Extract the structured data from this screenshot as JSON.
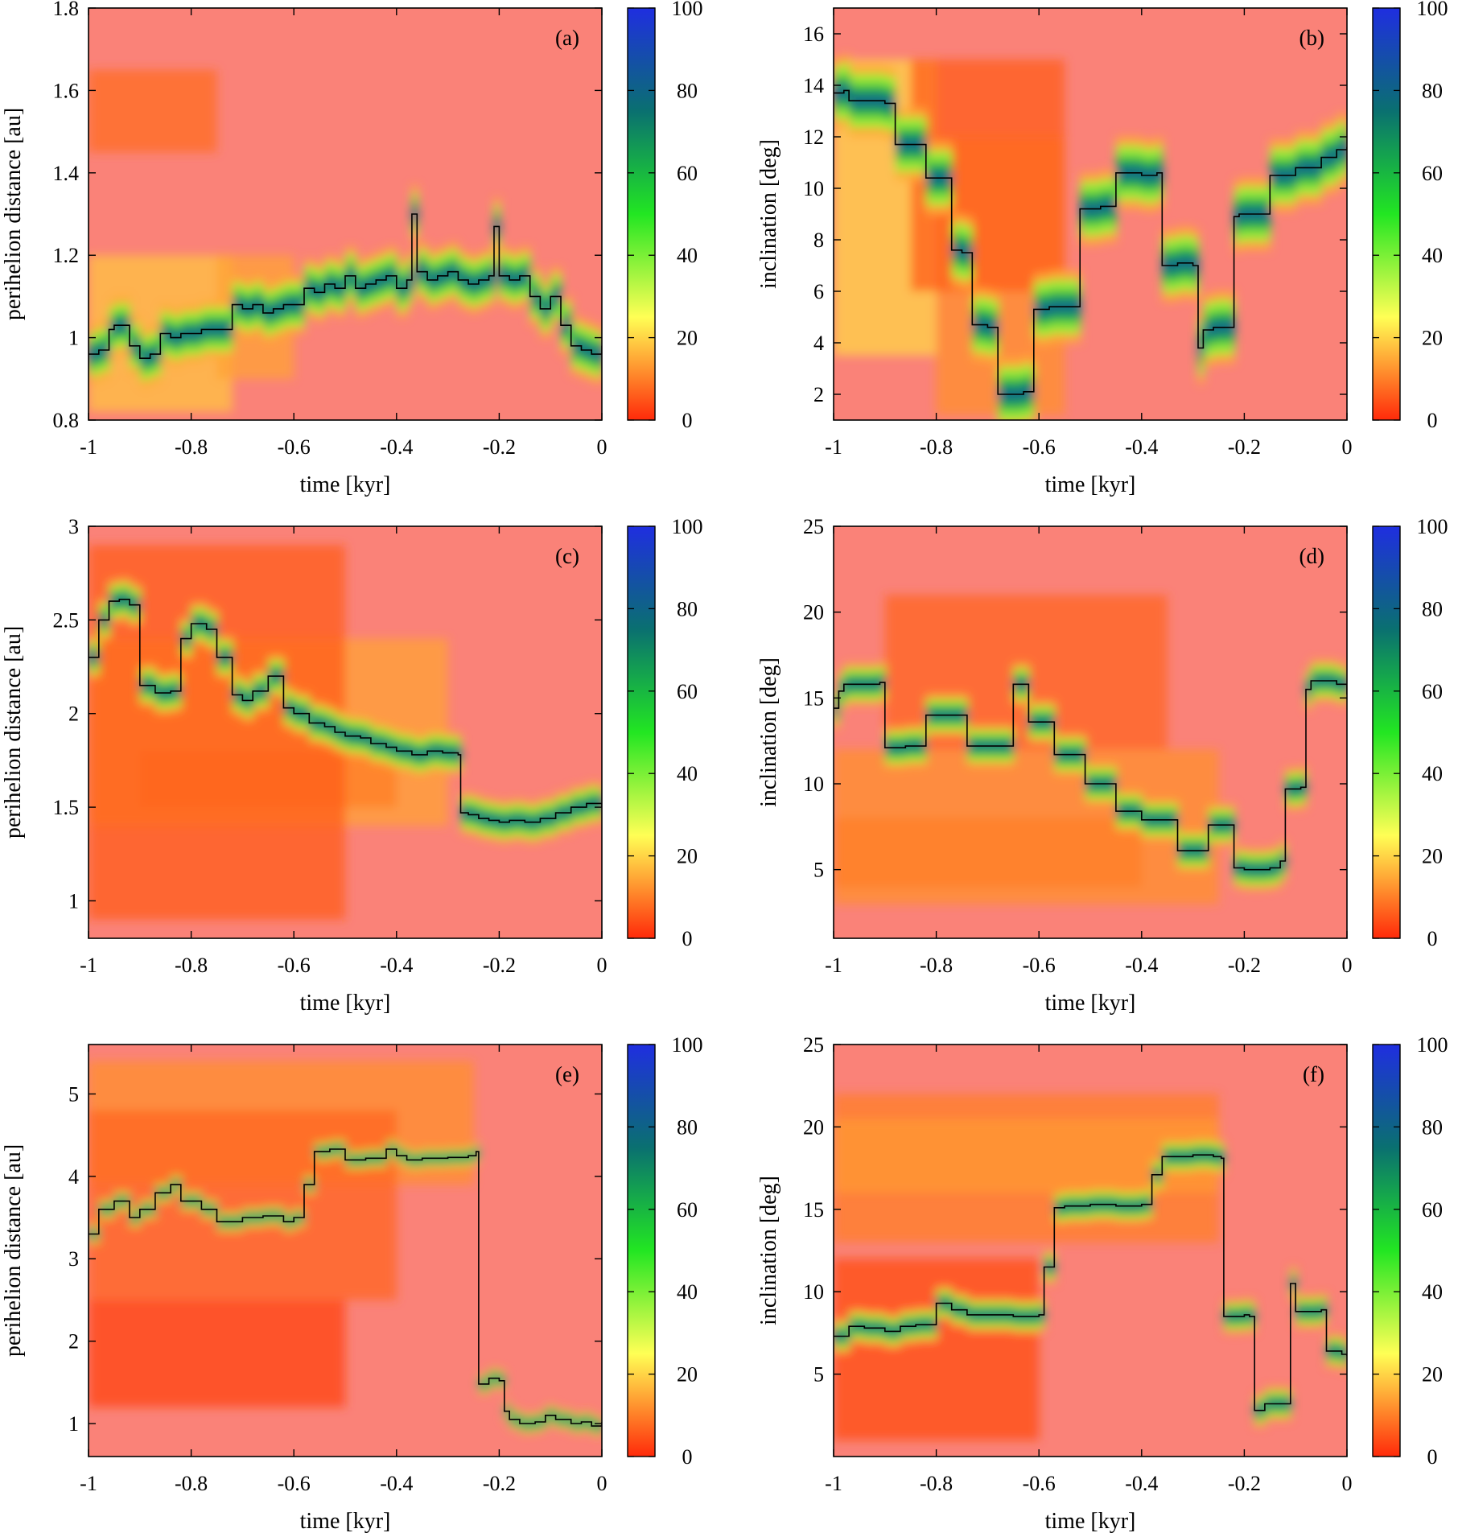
{
  "colorbar": {
    "ticks": [
      0,
      20,
      40,
      60,
      80,
      100
    ],
    "colors": [
      "#ff2a0a",
      "#ffff55",
      "#22e622",
      "#0a7070",
      "#1f2ee0"
    ],
    "background": "#fa8278"
  },
  "chart_data": [
    {
      "type": "heatmap",
      "panel": "(a)",
      "xlabel": "time [kyr]",
      "ylabel": "perihelion distance [au]",
      "xlim": [
        -1,
        0
      ],
      "ylim": [
        0.8,
        1.8
      ],
      "xticks": [
        -1,
        -0.8,
        -0.6,
        -0.4,
        -0.2,
        0
      ],
      "xtick_labels": [
        "-1",
        "-0.8",
        "-0.6",
        "-0.4",
        "-0.2",
        "0"
      ],
      "yticks": [
        0.8,
        1,
        1.2,
        1.4,
        1.6,
        1.8
      ],
      "ytick_labels": [
        "0.8",
        "1",
        "1.2",
        "1.4",
        "1.6",
        "1.8"
      ],
      "line": {
        "x": [
          -1,
          -0.98,
          -0.96,
          -0.95,
          -0.92,
          -0.9,
          -0.88,
          -0.86,
          -0.84,
          -0.82,
          -0.8,
          -0.78,
          -0.75,
          -0.72,
          -0.7,
          -0.68,
          -0.66,
          -0.64,
          -0.62,
          -0.6,
          -0.58,
          -0.56,
          -0.54,
          -0.52,
          -0.5,
          -0.48,
          -0.46,
          -0.44,
          -0.42,
          -0.4,
          -0.38,
          -0.37,
          -0.36,
          -0.34,
          -0.32,
          -0.3,
          -0.28,
          -0.26,
          -0.24,
          -0.22,
          -0.21,
          -0.2,
          -0.18,
          -0.16,
          -0.14,
          -0.12,
          -0.1,
          -0.08,
          -0.06,
          -0.04,
          -0.02,
          0
        ],
        "y": [
          0.96,
          0.97,
          1.02,
          1.03,
          0.98,
          0.95,
          0.96,
          1.01,
          1.0,
          1.01,
          1.01,
          1.02,
          1.02,
          1.08,
          1.07,
          1.08,
          1.06,
          1.07,
          1.08,
          1.08,
          1.12,
          1.11,
          1.13,
          1.12,
          1.15,
          1.12,
          1.13,
          1.14,
          1.15,
          1.12,
          1.14,
          1.3,
          1.16,
          1.14,
          1.15,
          1.16,
          1.14,
          1.13,
          1.14,
          1.15,
          1.27,
          1.15,
          1.14,
          1.15,
          1.1,
          1.07,
          1.1,
          1.03,
          0.98,
          0.97,
          0.96,
          0.98
        ],
        "band": 0.07
      },
      "cloud": [
        {
          "x": [
            -1,
            -0.72
          ],
          "y": [
            0.82,
            1.2
          ],
          "v": 18
        },
        {
          "x": [
            -1,
            -0.75
          ],
          "y": [
            1.45,
            1.65
          ],
          "v": 8
        },
        {
          "x": [
            -0.75,
            -0.6
          ],
          "y": [
            0.9,
            1.2
          ],
          "v": 14
        }
      ]
    },
    {
      "type": "heatmap",
      "panel": "(b)",
      "xlabel": "time [kyr]",
      "ylabel": "inclination [deg]",
      "xlim": [
        -1,
        0
      ],
      "ylim": [
        1,
        17
      ],
      "xticks": [
        -1,
        -0.8,
        -0.6,
        -0.4,
        -0.2,
        0
      ],
      "xtick_labels": [
        "-1",
        "-0.8",
        "-0.6",
        "-0.4",
        "-0.2",
        "0"
      ],
      "yticks": [
        2,
        4,
        6,
        8,
        10,
        12,
        14,
        16
      ],
      "ytick_labels": [
        "2",
        "4",
        "6",
        "8",
        "10",
        "12",
        "14",
        "16"
      ],
      "line": {
        "x": [
          -1,
          -0.98,
          -0.97,
          -0.9,
          -0.88,
          -0.82,
          -0.8,
          -0.77,
          -0.75,
          -0.73,
          -0.7,
          -0.68,
          -0.63,
          -0.61,
          -0.58,
          -0.52,
          -0.48,
          -0.45,
          -0.43,
          -0.4,
          -0.37,
          -0.36,
          -0.33,
          -0.3,
          -0.29,
          -0.28,
          -0.26,
          -0.24,
          -0.22,
          -0.21,
          -0.19,
          -0.15,
          -0.1,
          -0.05,
          -0.02,
          0
        ],
        "y": [
          13.7,
          13.8,
          13.4,
          13.3,
          11.7,
          10.4,
          10.4,
          7.6,
          7.5,
          4.7,
          4.6,
          2.0,
          2.1,
          5.3,
          5.4,
          9.2,
          9.3,
          10.6,
          10.6,
          10.5,
          10.6,
          7.0,
          7.1,
          7.0,
          3.8,
          4.5,
          4.6,
          4.6,
          8.9,
          9.0,
          9.0,
          10.5,
          10.8,
          11.2,
          11.5,
          11.6
        ],
        "band": 1.4
      },
      "cloud": [
        {
          "x": [
            -1,
            -0.8
          ],
          "y": [
            3.5,
            15
          ],
          "v": 20
        },
        {
          "x": [
            -0.8,
            -0.55
          ],
          "y": [
            1.2,
            12
          ],
          "v": 12
        },
        {
          "x": [
            -0.85,
            -0.55
          ],
          "y": [
            6,
            15
          ],
          "v": 6
        }
      ]
    },
    {
      "type": "heatmap",
      "panel": "(c)",
      "xlabel": "time [kyr]",
      "ylabel": "perihelion distance [au]",
      "xlim": [
        -1,
        0
      ],
      "ylim": [
        0.8,
        3
      ],
      "xticks": [
        -1,
        -0.8,
        -0.6,
        -0.4,
        -0.2,
        0
      ],
      "xtick_labels": [
        "-1",
        "-0.8",
        "-0.6",
        "-0.4",
        "-0.2",
        "0"
      ],
      "yticks": [
        1,
        1.5,
        2,
        2.5,
        3
      ],
      "ytick_labels": [
        "1",
        "1.5",
        "2",
        "2.5",
        "3"
      ],
      "line": {
        "x": [
          -1,
          -0.98,
          -0.96,
          -0.94,
          -0.92,
          -0.9,
          -0.87,
          -0.84,
          -0.82,
          -0.8,
          -0.77,
          -0.75,
          -0.72,
          -0.7,
          -0.68,
          -0.65,
          -0.62,
          -0.6,
          -0.57,
          -0.54,
          -0.52,
          -0.5,
          -0.47,
          -0.45,
          -0.42,
          -0.4,
          -0.37,
          -0.34,
          -0.31,
          -0.28,
          -0.275,
          -0.26,
          -0.24,
          -0.22,
          -0.2,
          -0.18,
          -0.15,
          -0.12,
          -0.09,
          -0.06,
          -0.03,
          0
        ],
        "y": [
          2.3,
          2.5,
          2.6,
          2.61,
          2.58,
          2.15,
          2.11,
          2.12,
          2.4,
          2.48,
          2.45,
          2.3,
          2.1,
          2.07,
          2.12,
          2.2,
          2.03,
          2.0,
          1.95,
          1.93,
          1.9,
          1.88,
          1.87,
          1.84,
          1.82,
          1.8,
          1.78,
          1.8,
          1.79,
          1.78,
          1.47,
          1.46,
          1.44,
          1.43,
          1.42,
          1.43,
          1.42,
          1.44,
          1.47,
          1.5,
          1.52,
          1.5
        ],
        "band": 0.11
      },
      "cloud": [
        {
          "x": [
            -1,
            -0.3
          ],
          "y": [
            1.4,
            2.4
          ],
          "v": 14
        },
        {
          "x": [
            -0.9,
            -0.4
          ],
          "y": [
            1.5,
            1.8
          ],
          "v": 10
        },
        {
          "x": [
            -1,
            -0.5
          ],
          "y": [
            0.9,
            2.9
          ],
          "v": 6
        }
      ]
    },
    {
      "type": "heatmap",
      "panel": "(d)",
      "xlabel": "time [kyr]",
      "ylabel": "inclination [deg]",
      "xlim": [
        -1,
        0
      ],
      "ylim": [
        1,
        25
      ],
      "xticks": [
        -1,
        -0.8,
        -0.6,
        -0.4,
        -0.2,
        0
      ],
      "xtick_labels": [
        "-1",
        "-0.8",
        "-0.6",
        "-0.4",
        "-0.2",
        "0"
      ],
      "yticks": [
        5,
        10,
        15,
        20,
        25
      ],
      "ytick_labels": [
        "5",
        "10",
        "15",
        "20",
        "25"
      ],
      "line": {
        "x": [
          -1,
          -0.99,
          -0.98,
          -0.91,
          -0.9,
          -0.86,
          -0.82,
          -0.75,
          -0.74,
          -0.7,
          -0.66,
          -0.65,
          -0.62,
          -0.58,
          -0.57,
          -0.52,
          -0.51,
          -0.46,
          -0.45,
          -0.4,
          -0.34,
          -0.33,
          -0.28,
          -0.27,
          -0.23,
          -0.22,
          -0.2,
          -0.15,
          -0.13,
          -0.12,
          -0.09,
          -0.08,
          -0.07,
          -0.02,
          0
        ],
        "y": [
          14.4,
          15.4,
          15.8,
          15.9,
          12.1,
          12.2,
          14.0,
          14.0,
          12.2,
          12.2,
          12.2,
          15.8,
          13.6,
          13.6,
          11.7,
          11.7,
          10.0,
          10.0,
          8.4,
          7.9,
          7.9,
          6.1,
          6.1,
          7.6,
          7.6,
          5.1,
          5.0,
          5.1,
          5.5,
          9.7,
          9.8,
          15.5,
          16.0,
          15.8,
          15.2
        ],
        "band": 1.2
      },
      "cloud": [
        {
          "x": [
            -1,
            -0.25
          ],
          "y": [
            3,
            12
          ],
          "v": 12
        },
        {
          "x": [
            -0.9,
            -0.35
          ],
          "y": [
            12,
            21
          ],
          "v": 7
        },
        {
          "x": [
            -1,
            -0.4
          ],
          "y": [
            4,
            8
          ],
          "v": 10
        }
      ]
    },
    {
      "type": "heatmap",
      "panel": "(e)",
      "xlabel": "time [kyr]",
      "ylabel": "perihelion distance [au]",
      "xlim": [
        -1,
        0
      ],
      "ylim": [
        0.6,
        5.6
      ],
      "xticks": [
        -1,
        -0.8,
        -0.6,
        -0.4,
        -0.2,
        0
      ],
      "xtick_labels": [
        "-1",
        "-0.8",
        "-0.6",
        "-0.4",
        "-0.2",
        "0"
      ],
      "yticks": [
        1,
        2,
        3,
        4,
        5
      ],
      "ytick_labels": [
        "1",
        "2",
        "3",
        "4",
        "5"
      ],
      "line": {
        "x": [
          -1,
          -0.98,
          -0.95,
          -0.92,
          -0.9,
          -0.87,
          -0.84,
          -0.82,
          -0.78,
          -0.75,
          -0.7,
          -0.66,
          -0.62,
          -0.6,
          -0.58,
          -0.56,
          -0.53,
          -0.5,
          -0.46,
          -0.42,
          -0.4,
          -0.38,
          -0.35,
          -0.3,
          -0.26,
          -0.245,
          -0.24,
          -0.22,
          -0.2,
          -0.19,
          -0.18,
          -0.16,
          -0.13,
          -0.11,
          -0.09,
          -0.06,
          -0.04,
          -0.02,
          0
        ],
        "y": [
          3.3,
          3.6,
          3.7,
          3.5,
          3.6,
          3.8,
          3.9,
          3.7,
          3.6,
          3.45,
          3.5,
          3.52,
          3.45,
          3.5,
          3.9,
          4.3,
          4.33,
          4.2,
          4.22,
          4.33,
          4.25,
          4.2,
          4.22,
          4.23,
          4.25,
          4.3,
          1.48,
          1.55,
          1.52,
          1.15,
          1.05,
          1.0,
          1.02,
          1.1,
          1.05,
          1.0,
          1.02,
          0.97,
          1.02
        ],
        "band": 0.12
      },
      "cloud": [
        {
          "x": [
            -1,
            -0.25
          ],
          "y": [
            3.9,
            5.4
          ],
          "v": 12
        },
        {
          "x": [
            -1,
            -0.4
          ],
          "y": [
            2.5,
            4.8
          ],
          "v": 7
        },
        {
          "x": [
            -1,
            -0.5
          ],
          "y": [
            1.2,
            2.5
          ],
          "v": 3
        }
      ]
    },
    {
      "type": "heatmap",
      "panel": "(f)",
      "xlabel": "time [kyr]",
      "ylabel": "inclination [deg]",
      "xlim": [
        -1,
        0
      ],
      "ylim": [
        0,
        25
      ],
      "xticks": [
        -1,
        -0.8,
        -0.6,
        -0.4,
        -0.2,
        0
      ],
      "xtick_labels": [
        "-1",
        "-0.8",
        "-0.6",
        "-0.4",
        "-0.2",
        "0"
      ],
      "yticks": [
        5,
        10,
        15,
        20,
        25
      ],
      "ytick_labels": [
        "5",
        "10",
        "15",
        "20",
        "25"
      ],
      "line": {
        "x": [
          -1,
          -0.97,
          -0.94,
          -0.9,
          -0.87,
          -0.84,
          -0.8,
          -0.77,
          -0.74,
          -0.7,
          -0.65,
          -0.6,
          -0.59,
          -0.57,
          -0.55,
          -0.5,
          -0.45,
          -0.4,
          -0.38,
          -0.36,
          -0.3,
          -0.26,
          -0.245,
          -0.24,
          -0.2,
          -0.19,
          -0.18,
          -0.16,
          -0.13,
          -0.11,
          -0.1,
          -0.07,
          -0.05,
          -0.04,
          -0.01,
          0
        ],
        "y": [
          7.3,
          7.9,
          7.8,
          7.6,
          7.9,
          8.0,
          9.3,
          8.9,
          8.6,
          8.6,
          8.5,
          8.6,
          11.5,
          15.1,
          15.2,
          15.3,
          15.2,
          15.3,
          17.1,
          18.2,
          18.3,
          18.2,
          18.1,
          8.5,
          8.6,
          8.5,
          2.8,
          3.2,
          3.2,
          10.5,
          8.8,
          8.8,
          8.9,
          6.4,
          6.2,
          6.1
        ],
        "band": 1.0
      },
      "cloud": [
        {
          "x": [
            -1,
            -0.25
          ],
          "y": [
            16,
            20.5
          ],
          "v": 22
        },
        {
          "x": [
            -1,
            -0.25
          ],
          "y": [
            13,
            22
          ],
          "v": 10
        },
        {
          "x": [
            -1,
            -0.6
          ],
          "y": [
            1,
            12
          ],
          "v": 4
        }
      ]
    }
  ]
}
